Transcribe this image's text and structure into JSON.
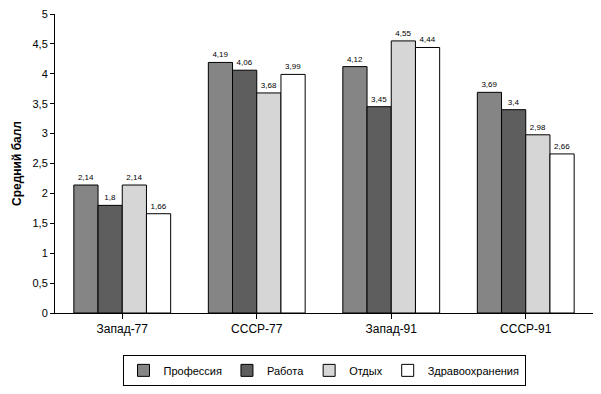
{
  "chart_data": {
    "type": "bar",
    "categories": [
      "Запад-77",
      "СССР-77",
      "Запад-91",
      "СССР-91"
    ],
    "series": [
      {
        "name": "Профессия",
        "color": "#858585",
        "values": [
          2.14,
          4.19,
          4.12,
          3.69
        ],
        "value_labels": [
          "2,14",
          "4,19",
          "4,12",
          "3,69"
        ]
      },
      {
        "name": "Работа",
        "color": "#5e5e5e",
        "values": [
          1.8,
          4.06,
          3.45,
          3.4
        ],
        "value_labels": [
          "1,8",
          "4,06",
          "3,45",
          "3,4"
        ]
      },
      {
        "name": "Отдых",
        "color": "#d6d6d6",
        "values": [
          2.14,
          3.68,
          4.55,
          2.98
        ],
        "value_labels": [
          "2,14",
          "3,68",
          "4,55",
          "2,98"
        ]
      },
      {
        "name": "Здравоохранения",
        "color": "#ffffff",
        "values": [
          1.66,
          3.99,
          4.44,
          2.66
        ],
        "value_labels": [
          "1,66",
          "3,99",
          "4,44",
          "2,66"
        ]
      }
    ],
    "y_label": "Средний балл",
    "ylim": [
      0,
      5
    ],
    "yticks": [
      0,
      {
        "value": 0.5,
        "label": "0,5"
      },
      1,
      {
        "value": 1.5,
        "label": "1,5"
      },
      2,
      {
        "value": 2.5,
        "label": "2,5"
      },
      3,
      {
        "value": 3.5,
        "label": "3,5"
      },
      4,
      {
        "value": 4.5,
        "label": "4,5"
      },
      5
    ],
    "grid": false,
    "legend": "bottom",
    "data_labels": true
  }
}
